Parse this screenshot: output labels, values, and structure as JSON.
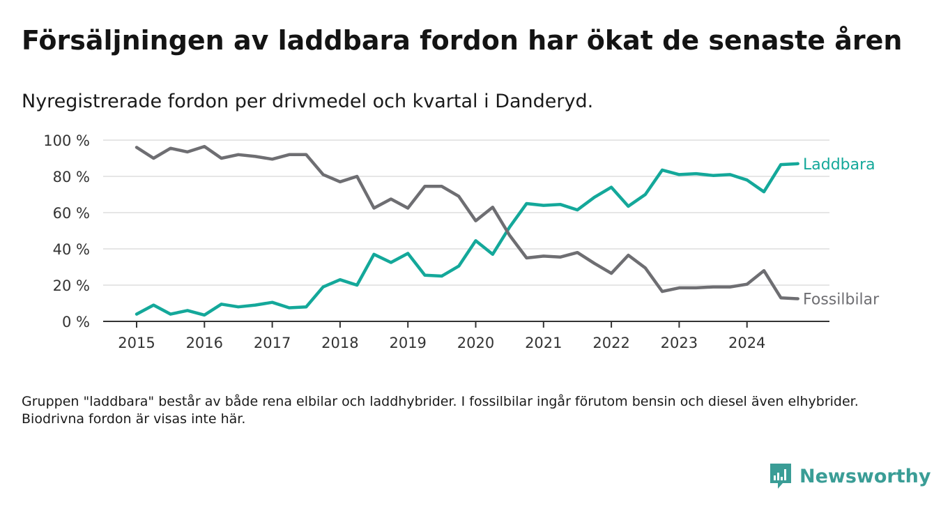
{
  "title": "Försäljningen av laddbara fordon har ökat de senaste åren",
  "subtitle": "Nyregistrerade fordon per drivmedel och kvartal i Danderyd.",
  "footnote": "Gruppen \"laddbara\" består av både rena elbilar och laddhybrider. I fossilbilar ingår förutom bensin och diesel även elhybrider. Biodrivna fordon är visas inte här.",
  "brand": {
    "name": "Newsworthy",
    "icon": "bar-chart-speech-icon",
    "color": "#3a9d96"
  },
  "colors": {
    "laddbara": "#14a89a",
    "fossil": "#6e6e72",
    "grid": "#dddddd",
    "axis": "#333333"
  },
  "chart_data": {
    "type": "line",
    "title": "Försäljningen av laddbara fordon har ökat de senaste åren",
    "xlabel": "",
    "ylabel": "",
    "ylim": [
      0,
      100
    ],
    "yticks": [
      0,
      20,
      40,
      60,
      80,
      100
    ],
    "ytick_labels": [
      "0 %",
      "20 %",
      "40 %",
      "60 %",
      "80 %",
      "100 %"
    ],
    "xticks": [
      2015,
      2016,
      2017,
      2018,
      2019,
      2020,
      2021,
      2022,
      2023,
      2024
    ],
    "xtick_labels": [
      "2015",
      "2016",
      "2017",
      "2018",
      "2019",
      "2020",
      "2021",
      "2022",
      "2023",
      "2024"
    ],
    "x": [
      2015.0,
      2015.25,
      2015.5,
      2015.75,
      2016.0,
      2016.25,
      2016.5,
      2016.75,
      2017.0,
      2017.25,
      2017.5,
      2017.75,
      2018.0,
      2018.25,
      2018.5,
      2018.75,
      2019.0,
      2019.25,
      2019.5,
      2019.75,
      2020.0,
      2020.25,
      2020.5,
      2020.75,
      2021.0,
      2021.25,
      2021.5,
      2021.75,
      2022.0,
      2022.25,
      2022.5,
      2022.75,
      2023.0,
      2023.25,
      2023.5,
      2023.75,
      2024.0,
      2024.25,
      2024.5,
      2024.75
    ],
    "series": [
      {
        "name": "Laddbara",
        "values": [
          4,
          9,
          4,
          6,
          3.5,
          9.5,
          8,
          9,
          10.5,
          7.5,
          8,
          19,
          23,
          20,
          37,
          32.5,
          37.5,
          25.5,
          25,
          30.5,
          44.5,
          37,
          52,
          65,
          64,
          64.5,
          61.5,
          68.5,
          74,
          63.5,
          70,
          83.5,
          81,
          81.5,
          80.5,
          81,
          78,
          71.5,
          86.5,
          87
        ]
      },
      {
        "name": "Fossilbilar",
        "values": [
          96,
          90,
          95.5,
          93.5,
          96.5,
          90,
          92,
          91,
          89.5,
          92,
          92,
          81,
          77,
          80,
          62.5,
          67.5,
          62.5,
          74.5,
          74.5,
          69,
          55.5,
          63,
          47.5,
          35,
          36,
          35.5,
          38,
          32,
          26.5,
          36.5,
          29.5,
          16.5,
          18.5,
          18.5,
          19,
          19,
          20.5,
          28,
          13,
          12.5
        ]
      }
    ],
    "legend": "inline-right"
  }
}
